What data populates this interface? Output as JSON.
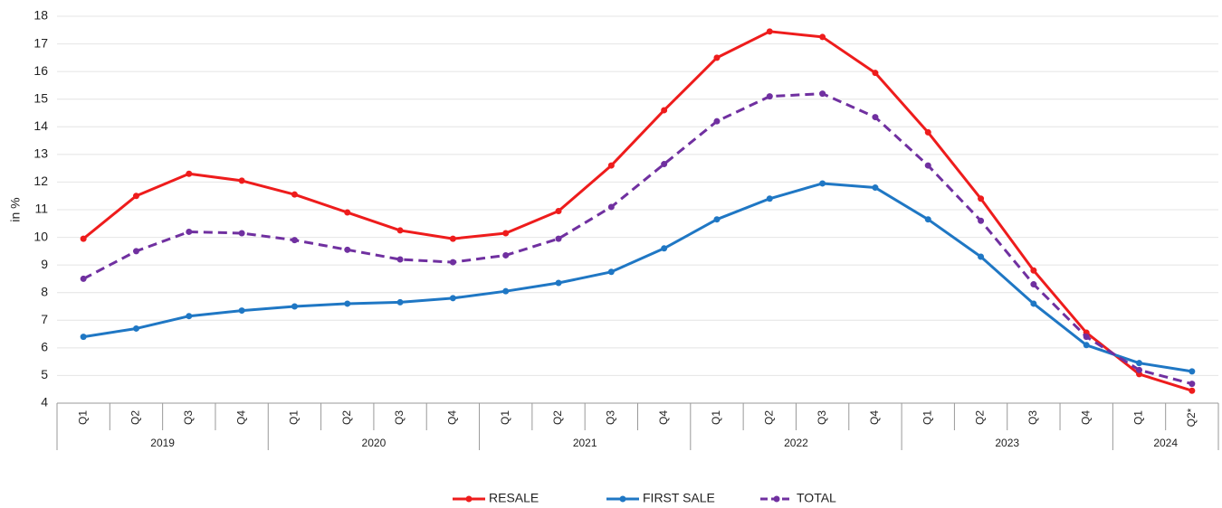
{
  "chart_data": {
    "type": "line",
    "y_label": "in %",
    "categories": [
      "Q1",
      "Q2",
      "Q3",
      "Q4",
      "Q1",
      "Q2",
      "Q3",
      "Q4",
      "Q1",
      "Q2",
      "Q3",
      "Q4",
      "Q1",
      "Q2",
      "Q3",
      "Q4",
      "Q1",
      "Q2",
      "Q3",
      "Q4",
      "Q1",
      "Q2*"
    ],
    "year_groups": [
      {
        "name": "2019",
        "count": 4
      },
      {
        "name": "2020",
        "count": 4
      },
      {
        "name": "2021",
        "count": 4
      },
      {
        "name": "2022",
        "count": 4
      },
      {
        "name": "2023",
        "count": 4
      },
      {
        "name": "2024",
        "count": 2
      }
    ],
    "series": [
      {
        "name": "RESALE",
        "color": "#ee1c1c",
        "dashed": false,
        "values": [
          9.95,
          11.5,
          12.3,
          12.05,
          11.55,
          10.9,
          10.25,
          9.95,
          10.15,
          10.95,
          12.6,
          14.6,
          16.5,
          17.45,
          17.25,
          15.95,
          13.8,
          11.4,
          8.8,
          6.55,
          5.05,
          4.45
        ]
      },
      {
        "name": "FIRST SALE",
        "color": "#1f77c4",
        "dashed": false,
        "values": [
          6.4,
          6.7,
          7.15,
          7.35,
          7.5,
          7.6,
          7.65,
          7.8,
          8.05,
          8.35,
          8.75,
          9.6,
          10.65,
          11.4,
          11.95,
          11.8,
          10.65,
          9.3,
          7.6,
          6.1,
          5.45,
          5.15
        ]
      },
      {
        "name": "TOTAL",
        "color": "#7030a0",
        "dashed": true,
        "values": [
          8.5,
          9.5,
          10.2,
          10.15,
          9.9,
          9.55,
          9.2,
          9.1,
          9.35,
          9.95,
          11.1,
          12.65,
          14.2,
          15.1,
          15.2,
          14.35,
          12.6,
          10.6,
          8.3,
          6.4,
          5.2,
          4.7
        ]
      }
    ],
    "ylim": [
      4,
      18
    ],
    "yticks": [
      4,
      5,
      6,
      7,
      8,
      9,
      10,
      11,
      12,
      13,
      14,
      15,
      16,
      17,
      18
    ],
    "grid": true
  }
}
